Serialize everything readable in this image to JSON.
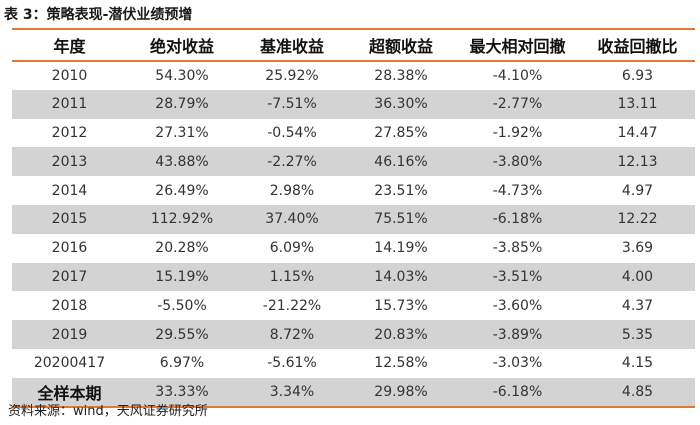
{
  "caption": "表 3：策略表现-潜伏业绩预增",
  "table": {
    "headers": [
      "年度",
      "绝对收益",
      "基准收益",
      "超额收益",
      "最大相对回撤",
      "收益回撤比"
    ],
    "rows": [
      [
        "2010",
        "54.30%",
        "25.92%",
        "28.38%",
        "-4.10%",
        "6.93"
      ],
      [
        "2011",
        "28.79%",
        "-7.51%",
        "36.30%",
        "-2.77%",
        "13.11"
      ],
      [
        "2012",
        "27.31%",
        "-0.54%",
        "27.85%",
        "-1.92%",
        "14.47"
      ],
      [
        "2013",
        "43.88%",
        "-2.27%",
        "46.16%",
        "-3.80%",
        "12.13"
      ],
      [
        "2014",
        "26.49%",
        "2.98%",
        "23.51%",
        "-4.73%",
        "4.97"
      ],
      [
        "2015",
        "112.92%",
        "37.40%",
        "75.51%",
        "-6.18%",
        "12.22"
      ],
      [
        "2016",
        "20.28%",
        "6.09%",
        "14.19%",
        "-3.85%",
        "3.69"
      ],
      [
        "2017",
        "15.19%",
        "1.15%",
        "14.03%",
        "-3.51%",
        "4.00"
      ],
      [
        "2018",
        "-5.50%",
        "-21.22%",
        "15.73%",
        "-3.60%",
        "4.37"
      ],
      [
        "2019",
        "29.55%",
        "8.72%",
        "20.83%",
        "-3.89%",
        "5.35"
      ],
      [
        "20200417",
        "6.97%",
        "-5.61%",
        "12.58%",
        "-3.03%",
        "4.15"
      ],
      [
        "全样本期",
        "33.33%",
        "3.34%",
        "29.98%",
        "-6.18%",
        "4.85"
      ]
    ]
  },
  "source": "资料来源：wind，天风证券研究所",
  "colors": {
    "accent_rule": "#e07a2e",
    "row_shade": "#d3d3d3"
  }
}
